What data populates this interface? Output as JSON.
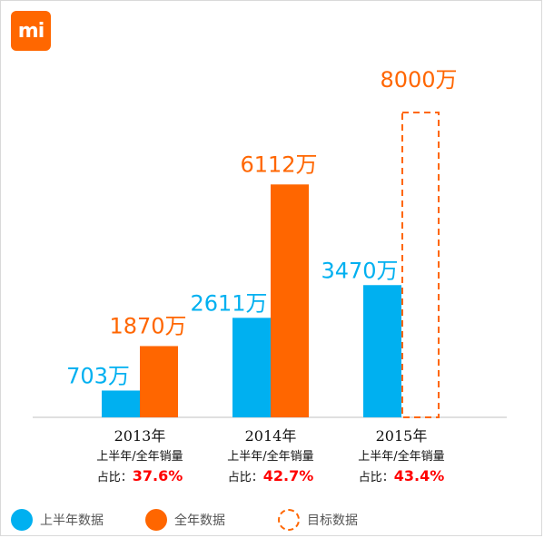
{
  "logo": {
    "text": "mi",
    "color": "#ff6700"
  },
  "colors": {
    "h1": "#00b0f0",
    "full": "#ff6600",
    "ratio": "#ff0000",
    "axis": "#bfbfbf",
    "text": "#111111"
  },
  "chart_data": {
    "type": "bar",
    "categories": [
      "2013年",
      "2014年",
      "2015年"
    ],
    "sublabel": "上半年/全年销量",
    "ratio_prefix": "占比：",
    "ratios": [
      "37.6%",
      "42.7%",
      "43.4%"
    ],
    "series": [
      {
        "name": "上半年数据",
        "values": [
          703,
          2611,
          3470
        ],
        "labels": [
          "703万",
          "2611万",
          "3470万"
        ],
        "style": "solid"
      },
      {
        "name": "全年数据",
        "values": [
          1870,
          6112,
          null
        ],
        "labels": [
          "1870万",
          "6112万",
          ""
        ],
        "style": "solid"
      },
      {
        "name": "目标数据",
        "values": [
          null,
          null,
          8000
        ],
        "labels": [
          "",
          "",
          "8000万"
        ],
        "style": "dashed"
      }
    ],
    "ylim": [
      0,
      8000
    ],
    "grid": false,
    "legend_position": "bottom"
  }
}
